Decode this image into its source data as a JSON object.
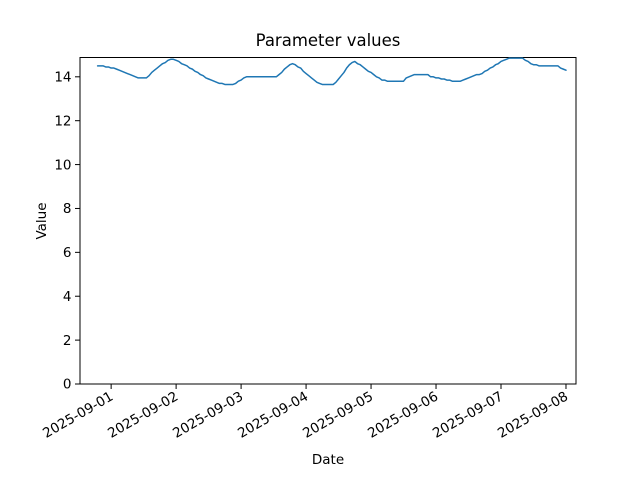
{
  "figure": {
    "background": "#ffffff"
  },
  "chart_data": {
    "type": "line",
    "title": "Parameter values",
    "xlabel": "Date",
    "ylabel": "Value",
    "grid": false,
    "x_tick_labels": [
      "2025-09-01",
      "2025-09-02",
      "2025-09-03",
      "2025-09-04",
      "2025-09-05",
      "2025-09-06",
      "2025-09-07",
      "2025-09-08"
    ],
    "x_tick_hours": [
      5,
      29,
      53,
      77,
      101,
      125,
      149,
      173
    ],
    "y_ticks": [
      0,
      2,
      4,
      6,
      8,
      10,
      12,
      14
    ],
    "ylim": [
      0,
      14.88
    ],
    "xlim_hours": [
      -6.5,
      176.7
    ],
    "series": [
      {
        "name": "parameter-values",
        "color": "#1f77b4",
        "line_width": 1.5,
        "x_start": "2025-08-31 19:00",
        "x_step_hours": 1,
        "values": [
          14.5,
          14.5,
          14.5,
          14.45,
          14.45,
          14.4,
          14.4,
          14.35,
          14.3,
          14.25,
          14.2,
          14.15,
          14.1,
          14.05,
          14.0,
          13.95,
          13.95,
          13.95,
          13.95,
          14.05,
          14.2,
          14.3,
          14.4,
          14.5,
          14.6,
          14.65,
          14.75,
          14.8,
          14.8,
          14.75,
          14.7,
          14.6,
          14.55,
          14.5,
          14.4,
          14.35,
          14.25,
          14.2,
          14.1,
          14.05,
          13.95,
          13.9,
          13.85,
          13.8,
          13.75,
          13.7,
          13.7,
          13.65,
          13.65,
          13.65,
          13.65,
          13.7,
          13.8,
          13.85,
          13.95,
          14.0,
          14.0,
          14.0,
          14.0,
          14.0,
          14.0,
          14.0,
          14.0,
          14.0,
          14.0,
          14.0,
          14.0,
          14.1,
          14.2,
          14.35,
          14.45,
          14.55,
          14.6,
          14.55,
          14.45,
          14.4,
          14.25,
          14.15,
          14.05,
          13.95,
          13.85,
          13.75,
          13.7,
          13.65,
          13.65,
          13.65,
          13.65,
          13.65,
          13.75,
          13.9,
          14.05,
          14.2,
          14.4,
          14.55,
          14.65,
          14.7,
          14.6,
          14.55,
          14.45,
          14.35,
          14.25,
          14.2,
          14.1,
          14.0,
          13.95,
          13.85,
          13.85,
          13.8,
          13.8,
          13.8,
          13.8,
          13.8,
          13.8,
          13.8,
          13.95,
          14.0,
          14.05,
          14.1,
          14.1,
          14.1,
          14.1,
          14.1,
          14.1,
          14.0,
          14.0,
          13.95,
          13.95,
          13.9,
          13.9,
          13.85,
          13.85,
          13.8,
          13.8,
          13.8,
          13.8,
          13.85,
          13.9,
          13.95,
          14.0,
          14.05,
          14.1,
          14.1,
          14.15,
          14.25,
          14.3,
          14.4,
          14.45,
          14.55,
          14.6,
          14.7,
          14.75,
          14.8,
          14.85,
          14.85,
          14.85,
          14.85,
          14.85,
          14.85,
          14.75,
          14.7,
          14.6,
          14.55,
          14.55,
          14.5,
          14.5,
          14.5,
          14.5,
          14.5,
          14.5,
          14.5,
          14.5,
          14.4,
          14.35,
          14.3
        ]
      }
    ]
  }
}
